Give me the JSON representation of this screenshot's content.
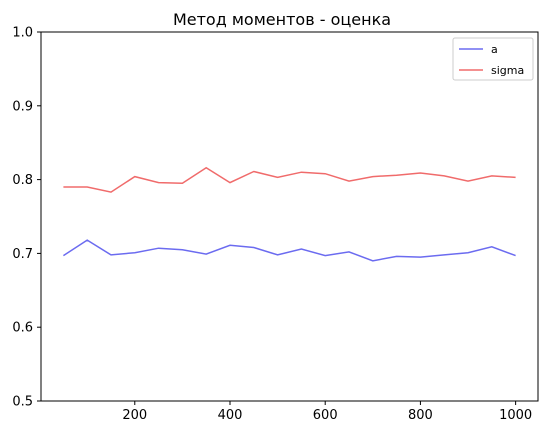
{
  "chart_data": {
    "type": "line",
    "title": "Метод моментов - оценка",
    "xlabel": "",
    "ylabel": "",
    "x": [
      50,
      100,
      150,
      200,
      250,
      300,
      350,
      400,
      450,
      500,
      550,
      600,
      650,
      700,
      750,
      800,
      850,
      900,
      950,
      1000
    ],
    "xlim": [
      3,
      1047
    ],
    "ylim": [
      0.5,
      1.0
    ],
    "xticks": [
      200,
      400,
      600,
      800,
      1000
    ],
    "xtick_labels": [
      "200",
      "400",
      "600",
      "800",
      "1000"
    ],
    "yticks": [
      0.5,
      0.6,
      0.7,
      0.8,
      0.9,
      1.0
    ],
    "ytick_labels": [
      "0.5",
      "0.6",
      "0.7",
      "0.8",
      "0.9",
      "1.0"
    ],
    "grid": false,
    "legend_position": "top-right",
    "series": [
      {
        "name": "a",
        "color": "#6b6bf0",
        "values": [
          0.697,
          0.718,
          0.698,
          0.701,
          0.707,
          0.705,
          0.699,
          0.711,
          0.708,
          0.698,
          0.706,
          0.697,
          0.702,
          0.69,
          0.696,
          0.695,
          0.698,
          0.701,
          0.709,
          0.697
        ]
      },
      {
        "name": "sigma",
        "color": "#f06b6b",
        "values": [
          0.79,
          0.79,
          0.783,
          0.804,
          0.796,
          0.795,
          0.816,
          0.796,
          0.811,
          0.803,
          0.81,
          0.808,
          0.798,
          0.804,
          0.806,
          0.809,
          0.805,
          0.798,
          0.805,
          0.803
        ]
      }
    ]
  }
}
